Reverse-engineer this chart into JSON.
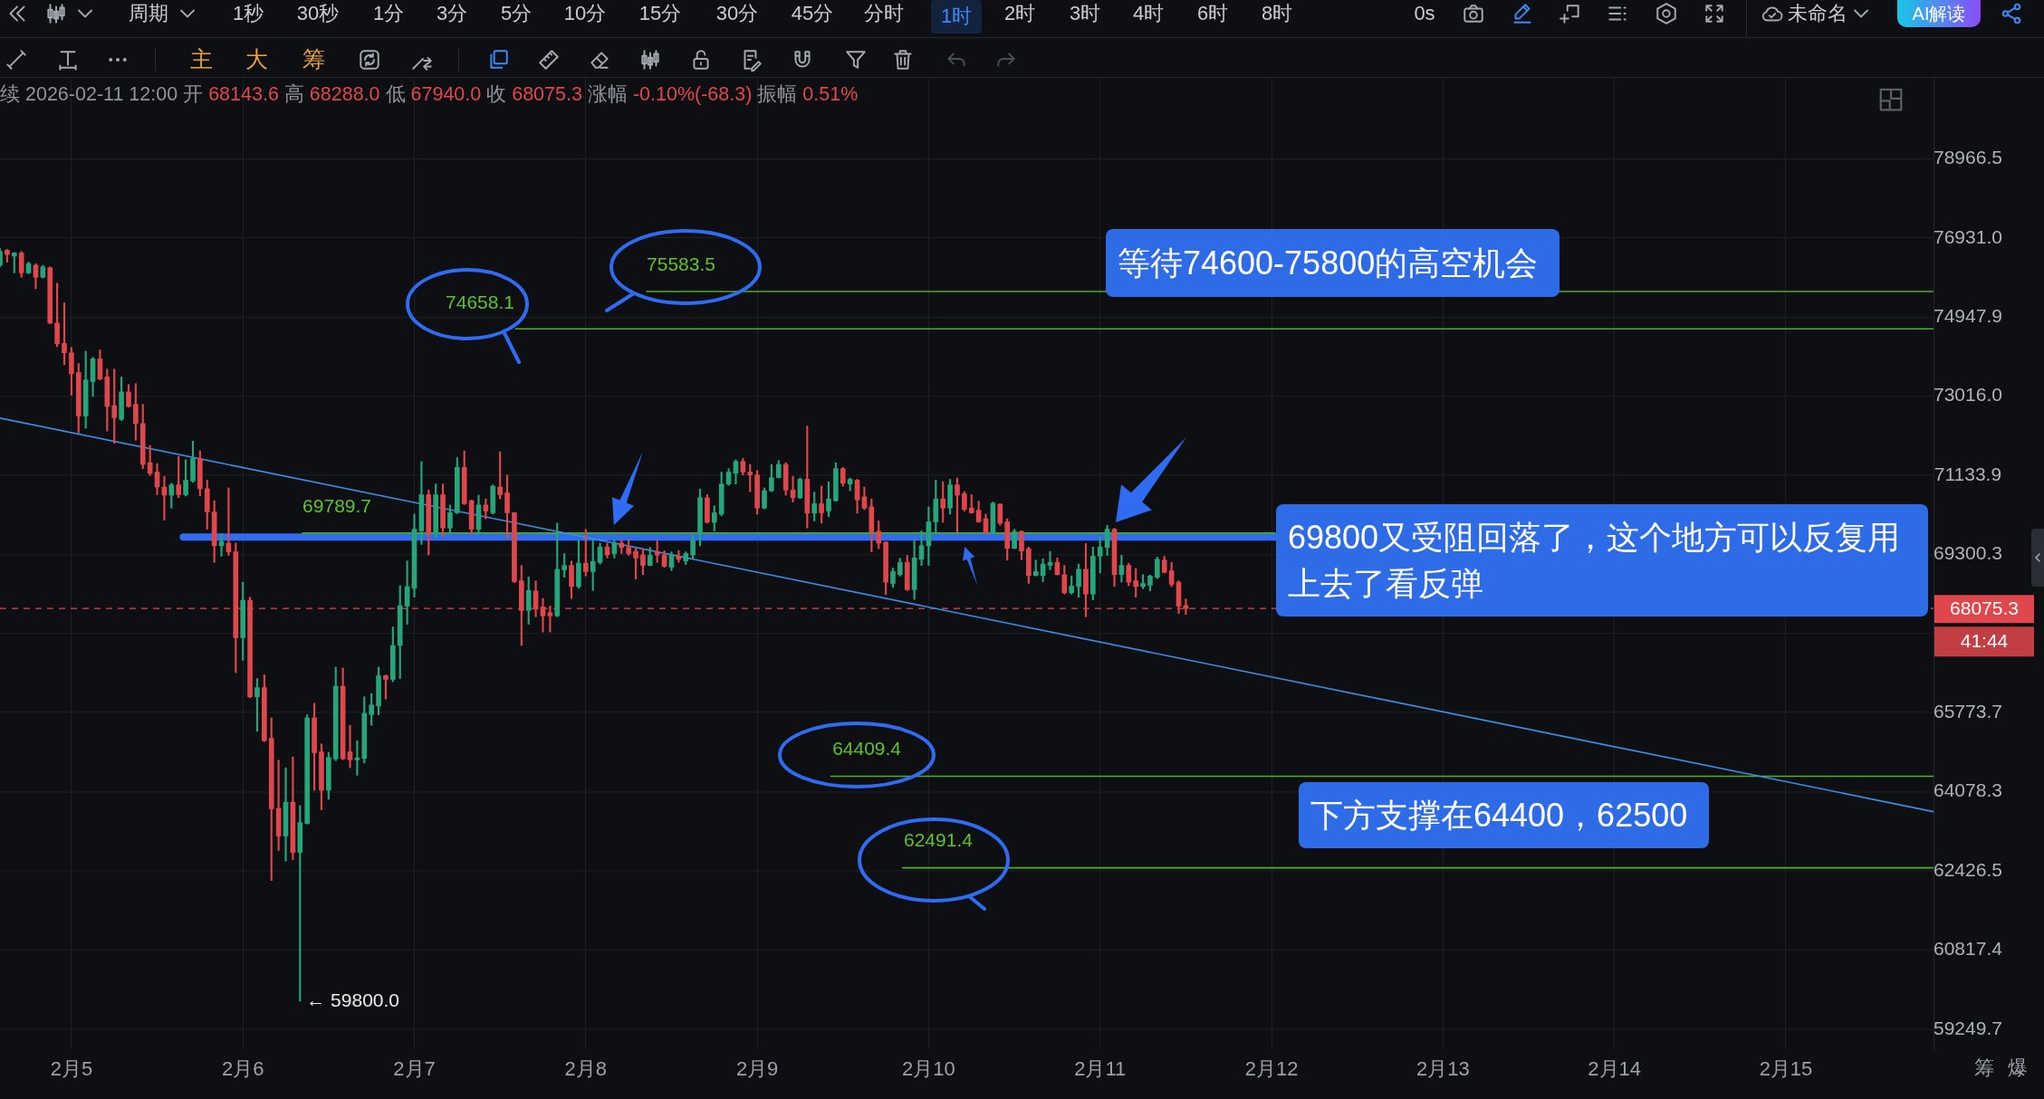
{
  "chart_data": {
    "type": "candlestick",
    "subtitle": "续 2026-02-11 12:00 开 68143.6 高 68288.0 低 67940.0 收 68075.3 涨幅 -0.10%(-68.3) 振幅 0.51%",
    "x": [
      "2026-02-04T14:00",
      "2026-02-04T15:00",
      "2026-02-04T16:00",
      "2026-02-04T17:00",
      "2026-02-04T18:00",
      "2026-02-04T19:00",
      "2026-02-04T20:00",
      "2026-02-04T21:00",
      "2026-02-04T22:00",
      "2026-02-04T23:00",
      "2026-02-05T00:00",
      "2026-02-05T01:00",
      "2026-02-05T02:00",
      "2026-02-05T03:00",
      "2026-02-05T04:00",
      "2026-02-05T05:00",
      "2026-02-05T06:00",
      "2026-02-05T07:00",
      "2026-02-05T08:00",
      "2026-02-05T09:00",
      "2026-02-05T10:00",
      "2026-02-05T11:00",
      "2026-02-05T12:00",
      "2026-02-05T13:00",
      "2026-02-05T14:00",
      "2026-02-05T15:00",
      "2026-02-05T16:00",
      "2026-02-05T17:00",
      "2026-02-05T18:00",
      "2026-02-05T19:00",
      "2026-02-05T20:00",
      "2026-02-05T21:00",
      "2026-02-05T22:00",
      "2026-02-05T23:00",
      "2026-02-06T00:00",
      "2026-02-06T01:00",
      "2026-02-06T02:00",
      "2026-02-06T03:00",
      "2026-02-06T04:00",
      "2026-02-06T05:00",
      "2026-02-06T06:00",
      "2026-02-06T07:00",
      "2026-02-06T08:00",
      "2026-02-06T09:00",
      "2026-02-06T10:00",
      "2026-02-06T11:00",
      "2026-02-06T12:00",
      "2026-02-06T13:00",
      "2026-02-06T14:00",
      "2026-02-06T15:00",
      "2026-02-06T16:00",
      "2026-02-06T17:00",
      "2026-02-06T18:00",
      "2026-02-06T19:00",
      "2026-02-06T20:00",
      "2026-02-06T21:00",
      "2026-02-06T22:00",
      "2026-02-06T23:00",
      "2026-02-07T00:00",
      "2026-02-07T01:00",
      "2026-02-07T02:00",
      "2026-02-07T03:00",
      "2026-02-07T04:00",
      "2026-02-07T05:00",
      "2026-02-07T06:00",
      "2026-02-07T07:00",
      "2026-02-07T08:00",
      "2026-02-07T09:00",
      "2026-02-07T10:00",
      "2026-02-07T11:00",
      "2026-02-07T12:00",
      "2026-02-07T13:00",
      "2026-02-07T14:00",
      "2026-02-07T15:00",
      "2026-02-07T16:00",
      "2026-02-07T17:00",
      "2026-02-07T18:00",
      "2026-02-07T19:00",
      "2026-02-07T20:00",
      "2026-02-07T21:00",
      "2026-02-07T22:00",
      "2026-02-07T23:00",
      "2026-02-08T00:00",
      "2026-02-08T01:00",
      "2026-02-08T02:00",
      "2026-02-08T03:00",
      "2026-02-08T04:00",
      "2026-02-08T05:00",
      "2026-02-08T06:00",
      "2026-02-08T07:00",
      "2026-02-08T08:00",
      "2026-02-08T09:00",
      "2026-02-08T10:00",
      "2026-02-08T11:00",
      "2026-02-08T12:00",
      "2026-02-08T13:00",
      "2026-02-08T14:00",
      "2026-02-08T15:00",
      "2026-02-08T16:00",
      "2026-02-08T17:00",
      "2026-02-08T18:00",
      "2026-02-08T19:00",
      "2026-02-08T20:00",
      "2026-02-08T21:00",
      "2026-02-08T22:00",
      "2026-02-08T23:00",
      "2026-02-09T00:00",
      "2026-02-09T01:00",
      "2026-02-09T02:00",
      "2026-02-09T03:00",
      "2026-02-09T04:00",
      "2026-02-09T05:00",
      "2026-02-09T06:00",
      "2026-02-09T07:00",
      "2026-02-09T08:00",
      "2026-02-09T09:00",
      "2026-02-09T10:00",
      "2026-02-09T11:00",
      "2026-02-09T12:00",
      "2026-02-09T13:00",
      "2026-02-09T14:00",
      "2026-02-09T15:00",
      "2026-02-09T16:00",
      "2026-02-09T17:00",
      "2026-02-09T18:00",
      "2026-02-09T19:00",
      "2026-02-09T20:00",
      "2026-02-09T21:00",
      "2026-02-09T22:00",
      "2026-02-09T23:00",
      "2026-02-10T00:00",
      "2026-02-10T01:00",
      "2026-02-10T02:00",
      "2026-02-10T03:00",
      "2026-02-10T04:00",
      "2026-02-10T05:00",
      "2026-02-10T06:00",
      "2026-02-10T07:00",
      "2026-02-10T08:00",
      "2026-02-10T09:00",
      "2026-02-10T10:00",
      "2026-02-10T11:00",
      "2026-02-10T12:00",
      "2026-02-10T13:00",
      "2026-02-10T14:00",
      "2026-02-10T15:00",
      "2026-02-10T16:00",
      "2026-02-10T17:00",
      "2026-02-10T18:00",
      "2026-02-10T19:00",
      "2026-02-10T20:00",
      "2026-02-10T21:00",
      "2026-02-10T22:00",
      "2026-02-10T23:00",
      "2026-02-11T00:00",
      "2026-02-11T01:00",
      "2026-02-11T02:00",
      "2026-02-11T03:00",
      "2026-02-11T04:00",
      "2026-02-11T05:00",
      "2026-02-11T06:00",
      "2026-02-11T07:00",
      "2026-02-11T08:00",
      "2026-02-11T09:00",
      "2026-02-11T10:00",
      "2026-02-11T11:00",
      "2026-02-11T12:00"
    ],
    "ohlc": [
      [
        76240,
        76660,
        76200,
        76590
      ],
      [
        76620,
        76640,
        76320,
        76510
      ],
      [
        76470,
        76560,
        76050,
        76550
      ],
      [
        76550,
        76590,
        75940,
        76050
      ],
      [
        76050,
        76320,
        76030,
        76280
      ],
      [
        76240,
        76280,
        75650,
        75940
      ],
      [
        75940,
        76240,
        75920,
        76200
      ],
      [
        76180,
        76200,
        74780,
        74800
      ],
      [
        74800,
        75790,
        74220,
        74290
      ],
      [
        74300,
        75300,
        73780,
        74070
      ],
      [
        74070,
        74200,
        73040,
        73560
      ],
      [
        73590,
        73810,
        72140,
        72540
      ],
      [
        72540,
        74110,
        72250,
        73410
      ],
      [
        73370,
        73960,
        73010,
        73920
      ],
      [
        73920,
        74140,
        73410,
        73430
      ],
      [
        73480,
        73670,
        72180,
        72770
      ],
      [
        72790,
        73670,
        71890,
        72500
      ],
      [
        72460,
        73480,
        72430,
        73120
      ],
      [
        73120,
        73300,
        72750,
        72770
      ],
      [
        72820,
        73320,
        71960,
        72360
      ],
      [
        72360,
        72820,
        71290,
        71390
      ],
      [
        71430,
        71840,
        71130,
        71180
      ],
      [
        71210,
        71410,
        70680,
        70860
      ],
      [
        70860,
        71110,
        70090,
        70670
      ],
      [
        70670,
        70950,
        70370,
        70910
      ],
      [
        70910,
        71580,
        70610,
        70680
      ],
      [
        70680,
        71500,
        70650,
        71020
      ],
      [
        71000,
        71940,
        70970,
        71530
      ],
      [
        71530,
        71710,
        70650,
        70820
      ],
      [
        70820,
        71020,
        69880,
        70280
      ],
      [
        70280,
        70540,
        69120,
        69500
      ],
      [
        69500,
        69770,
        69260,
        69600
      ],
      [
        69560,
        70840,
        69280,
        69360
      ],
      [
        69360,
        69560,
        66650,
        67420
      ],
      [
        67420,
        68670,
        66920,
        68260
      ],
      [
        68260,
        68330,
        66100,
        66120
      ],
      [
        66120,
        66520,
        65370,
        66320
      ],
      [
        66320,
        66600,
        65150,
        65170
      ],
      [
        65220,
        65660,
        62230,
        63720
      ],
      [
        63730,
        64750,
        62850,
        63150
      ],
      [
        63150,
        64590,
        62630,
        63860
      ],
      [
        63860,
        64820,
        62660,
        62810
      ],
      [
        62810,
        63790,
        59800,
        63430
      ],
      [
        63410,
        65730,
        63400,
        65660
      ],
      [
        65660,
        65980,
        64110,
        64910
      ],
      [
        64930,
        65100,
        63700,
        64110
      ],
      [
        64110,
        64920,
        63920,
        64810
      ],
      [
        64780,
        66770,
        64740,
        66350
      ],
      [
        66350,
        66750,
        64760,
        64780
      ],
      [
        64930,
        65500,
        64590,
        64760
      ],
      [
        64760,
        65170,
        64430,
        64800
      ],
      [
        64790,
        66120,
        64690,
        65760
      ],
      [
        65730,
        66190,
        65500,
        65940
      ],
      [
        65920,
        66770,
        65730,
        66580
      ],
      [
        66580,
        66600,
        66070,
        66500
      ],
      [
        66500,
        67660,
        66450,
        67250
      ],
      [
        67250,
        68590,
        66520,
        68140
      ],
      [
        68130,
        69150,
        67720,
        68570
      ],
      [
        68530,
        70230,
        68330,
        69880
      ],
      [
        69840,
        71460,
        69530,
        70680
      ],
      [
        70680,
        70790,
        69290,
        69770
      ],
      [
        69770,
        70930,
        69700,
        70680
      ],
      [
        70680,
        70930,
        69700,
        69910
      ],
      [
        69910,
        70440,
        69770,
        70260
      ],
      [
        70260,
        71550,
        70240,
        71320
      ],
      [
        71320,
        71710,
        70450,
        70470
      ],
      [
        70540,
        70560,
        69770,
        69880
      ],
      [
        69880,
        70670,
        69770,
        70440
      ],
      [
        70440,
        70580,
        70120,
        70300
      ],
      [
        70260,
        70910,
        70230,
        70880
      ],
      [
        70860,
        71690,
        70580,
        70680
      ],
      [
        70720,
        71140,
        69670,
        70260
      ],
      [
        70260,
        70270,
        68660,
        68680
      ],
      [
        68700,
        69050,
        67250,
        68030
      ],
      [
        68030,
        68790,
        67720,
        68480
      ],
      [
        68470,
        68700,
        67890,
        68060
      ],
      [
        68110,
        68300,
        67550,
        67910
      ],
      [
        67980,
        68130,
        67550,
        67910
      ],
      [
        67910,
        70020,
        67890,
        68960
      ],
      [
        68950,
        69320,
        68780,
        69050
      ],
      [
        69050,
        69150,
        68300,
        68570
      ],
      [
        68570,
        69630,
        68530,
        69100
      ],
      [
        69100,
        69880,
        68810,
        68910
      ],
      [
        68910,
        69630,
        68480,
        69140
      ],
      [
        69120,
        69560,
        69080,
        69470
      ],
      [
        69470,
        69560,
        69220,
        69290
      ],
      [
        69320,
        69630,
        69220,
        69560
      ],
      [
        69560,
        69630,
        69320,
        69460
      ],
      [
        69460,
        69630,
        69280,
        69320
      ],
      [
        69370,
        69430,
        68740,
        69220
      ],
      [
        69290,
        69430,
        68840,
        69050
      ],
      [
        69050,
        69460,
        69040,
        69280
      ],
      [
        69360,
        69630,
        69120,
        69290
      ],
      [
        69290,
        69390,
        69010,
        69030
      ],
      [
        69010,
        69360,
        68930,
        69290
      ],
      [
        69260,
        69390,
        69120,
        69190
      ],
      [
        69150,
        69360,
        69070,
        69320
      ],
      [
        69290,
        69740,
        69190,
        69630
      ],
      [
        69770,
        70810,
        69500,
        70610
      ],
      [
        70610,
        70680,
        70020,
        70040
      ],
      [
        70040,
        70420,
        69840,
        70260
      ],
      [
        70230,
        71210,
        70190,
        70930
      ],
      [
        70930,
        71290,
        70900,
        71210
      ],
      [
        71180,
        71500,
        70930,
        71460
      ],
      [
        71460,
        71530,
        71140,
        71210
      ],
      [
        71210,
        71390,
        70750,
        71140
      ],
      [
        71140,
        71250,
        70230,
        70370
      ],
      [
        70370,
        70840,
        70350,
        70770
      ],
      [
        70770,
        71390,
        70750,
        71080
      ],
      [
        71080,
        71480,
        71070,
        71390
      ],
      [
        71390,
        71430,
        70670,
        70790
      ],
      [
        70790,
        71110,
        70510,
        70610
      ],
      [
        70610,
        71070,
        70590,
        71040
      ],
      [
        71040,
        72300,
        69910,
        70250
      ],
      [
        70250,
        70740,
        70070,
        70470
      ],
      [
        70470,
        70880,
        70020,
        70260
      ],
      [
        70300,
        70980,
        70170,
        70580
      ],
      [
        70540,
        71430,
        70530,
        71290
      ],
      [
        71290,
        71320,
        70880,
        70950
      ],
      [
        70930,
        71070,
        70770,
        71040
      ],
      [
        71020,
        71040,
        70250,
        70560
      ],
      [
        70630,
        70860,
        70340,
        70370
      ],
      [
        70400,
        70580,
        69360,
        69810
      ],
      [
        69830,
        70070,
        69430,
        69560
      ],
      [
        69580,
        69590,
        68390,
        68670
      ],
      [
        68640,
        68990,
        68550,
        68910
      ],
      [
        68840,
        69210,
        68810,
        69120
      ],
      [
        69120,
        69280,
        68480,
        68500
      ],
      [
        68500,
        69630,
        68280,
        69220
      ],
      [
        69190,
        69840,
        69050,
        69500
      ],
      [
        69500,
        70400,
        69050,
        70050
      ],
      [
        70050,
        71020,
        69810,
        70580
      ],
      [
        70580,
        70980,
        70040,
        70370
      ],
      [
        70370,
        71040,
        70230,
        70910
      ],
      [
        70910,
        71070,
        69810,
        70670
      ],
      [
        70700,
        70750,
        70300,
        70340
      ],
      [
        70370,
        70680,
        70250,
        70260
      ],
      [
        70320,
        70530,
        70040,
        70050
      ],
      [
        70120,
        70230,
        69780,
        69790
      ],
      [
        69790,
        70510,
        69780,
        70480
      ],
      [
        70460,
        70470,
        69970,
        70020
      ],
      [
        70050,
        70120,
        69170,
        69440
      ],
      [
        69440,
        69880,
        69430,
        69830
      ],
      [
        69830,
        69840,
        69180,
        69380
      ],
      [
        69430,
        69470,
        68640,
        68820
      ],
      [
        68820,
        69170,
        68810,
        68910
      ],
      [
        68820,
        69200,
        68680,
        69080
      ],
      [
        69050,
        69370,
        68950,
        69120
      ],
      [
        69120,
        69220,
        68830,
        68840
      ],
      [
        68840,
        69050,
        68400,
        68430
      ],
      [
        68430,
        68810,
        68400,
        68580
      ],
      [
        68570,
        69080,
        68330,
        68960
      ],
      [
        68960,
        69550,
        67890,
        68400
      ],
      [
        68400,
        69470,
        68270,
        69260
      ],
      [
        69260,
        69700,
        68880,
        69470
      ],
      [
        69460,
        69970,
        69280,
        69880
      ],
      [
        69880,
        69900,
        68570,
        68840
      ],
      [
        68840,
        69280,
        68670,
        69050
      ],
      [
        69050,
        69100,
        68590,
        68670
      ],
      [
        68700,
        68980,
        68330,
        68570
      ],
      [
        68570,
        68840,
        68520,
        68640
      ],
      [
        68600,
        68830,
        68470,
        68810
      ],
      [
        68780,
        69240,
        68750,
        69190
      ],
      [
        69170,
        69260,
        68880,
        68890
      ],
      [
        68930,
        69120,
        68570,
        68620
      ],
      [
        68670,
        68700,
        67960,
        68130
      ],
      [
        68143.6,
        68288.0,
        67940.0,
        68075.3
      ]
    ],
    "colors": [
      "#26a47a",
      "#e0474c",
      "#26a47a",
      "#e0474c",
      "#26a47a",
      "#e0474c",
      "#26a47a",
      "#e0474c",
      "#e0474c",
      "#e0474c",
      "#e0474c",
      "#e0474c",
      "#26a47a",
      "#26a47a",
      "#e0474c",
      "#e0474c",
      "#e0474c",
      "#26a47a",
      "#e0474c",
      "#e0474c",
      "#e0474c",
      "#e0474c",
      "#e0474c",
      "#e0474c",
      "#26a47a",
      "#e0474c",
      "#26a47a",
      "#26a47a",
      "#e0474c",
      "#e0474c",
      "#e0474c",
      "#26a47a",
      "#e0474c",
      "#e0474c",
      "#26a47a",
      "#e0474c",
      "#26a47a",
      "#e0474c",
      "#e0474c",
      "#e0474c",
      "#26a47a",
      "#e0474c",
      "#26a47a",
      "#26a47a",
      "#e0474c",
      "#e0474c",
      "#26a47a",
      "#26a47a",
      "#e0474c",
      "#e0474c",
      "#26a47a",
      "#26a47a",
      "#26a47a",
      "#26a47a",
      "#e0474c",
      "#26a47a",
      "#26a47a",
      "#26a47a",
      "#26a47a",
      "#26a47a",
      "#e0474c",
      "#26a47a",
      "#e0474c",
      "#26a47a",
      "#26a47a",
      "#e0474c",
      "#e0474c",
      "#26a47a",
      "#e0474c",
      "#26a47a",
      "#e0474c",
      "#e0474c",
      "#e0474c",
      "#e0474c",
      "#26a47a",
      "#e0474c",
      "#e0474c",
      "#e0474c",
      "#26a47a",
      "#26a47a",
      "#e0474c",
      "#26a47a",
      "#e0474c",
      "#26a47a",
      "#26a47a",
      "#e0474c",
      "#26a47a",
      "#e0474c",
      "#e0474c",
      "#e0474c",
      "#e0474c",
      "#26a47a",
      "#e0474c",
      "#e0474c",
      "#26a47a",
      "#e0474c",
      "#26a47a",
      "#26a47a",
      "#26a47a",
      "#e0474c",
      "#26a47a",
      "#26a47a",
      "#26a47a",
      "#26a47a",
      "#e0474c",
      "#e0474c",
      "#e0474c",
      "#26a47a",
      "#26a47a",
      "#26a47a",
      "#e0474c",
      "#e0474c",
      "#26a47a",
      "#e0474c",
      "#26a47a",
      "#e0474c",
      "#26a47a",
      "#26a47a",
      "#e0474c",
      "#26a47a",
      "#e0474c",
      "#e0474c",
      "#e0474c",
      "#e0474c",
      "#e0474c",
      "#26a47a",
      "#26a47a",
      "#e0474c",
      "#26a47a",
      "#26a47a",
      "#26a47a",
      "#26a47a",
      "#e0474c",
      "#26a47a",
      "#e0474c",
      "#e0474c",
      "#e0474c",
      "#e0474c",
      "#e0474c",
      "#26a47a",
      "#e0474c",
      "#e0474c",
      "#26a47a",
      "#e0474c",
      "#e0474c",
      "#26a47a",
      "#26a47a",
      "#26a47a",
      "#e0474c",
      "#e0474c",
      "#26a47a",
      "#26a47a",
      "#e0474c",
      "#26a47a",
      "#26a47a",
      "#26a47a",
      "#e0474c",
      "#26a47a",
      "#e0474c",
      "#e0474c",
      "#26a47a",
      "#26a47a",
      "#26a47a",
      "#e0474c",
      "#e0474c",
      "#e0474c",
      "#e0474c"
    ],
    "series": [
      {
        "type": "line",
        "color": "#3a8ee6",
        "x": [
          "2026-02-04T14:00",
          "2026-02-15T20:40"
        ],
        "values": [
          72490,
          63660
        ]
      },
      {
        "type": "line",
        "color": "#4caf26",
        "x": [
          "2026-02-08T08:30",
          "2026-02-15T20:40"
        ],
        "values": [
          75583.5,
          75583.5
        ]
      },
      {
        "type": "line",
        "color": "#4caf26",
        "x": [
          "2026-02-07T14:10",
          "2026-02-15T20:40"
        ],
        "values": [
          74658.1,
          74658.1
        ]
      },
      {
        "type": "line",
        "color": "#4caf26",
        "x": [
          "2026-02-06T08:20",
          "2026-02-12T00:30"
        ],
        "values": [
          69789.7,
          69789.7
        ]
      },
      {
        "type": "line",
        "color": "#4caf26",
        "x": [
          "2026-02-09T10:20",
          "2026-02-15T20:40"
        ],
        "values": [
          64409.4,
          64409.4
        ]
      },
      {
        "type": "line",
        "color": "#4caf26",
        "x": [
          "2026-02-09T20:20",
          "2026-02-15T20:40"
        ],
        "values": [
          62491.4,
          62491.4
        ]
      },
      {
        "type": "line",
        "color": "#2f6cf2",
        "x": [
          "2026-02-05T15:40",
          "2026-02-12T00:30"
        ],
        "values": [
          69700,
          69700
        ]
      }
    ],
    "xlim": [
      "2026-02-04T14:00",
      "2026-02-15T20:40"
    ],
    "xticks": [
      {
        "value": "2026-02-05",
        "label": "2月5"
      },
      {
        "value": "2026-02-06",
        "label": "2月6"
      },
      {
        "value": "2026-02-07",
        "label": "2月7"
      },
      {
        "value": "2026-02-08",
        "label": "2月8"
      },
      {
        "value": "2026-02-09",
        "label": "2月9"
      },
      {
        "value": "2026-02-10",
        "label": "2月10"
      },
      {
        "value": "2026-02-11",
        "label": "2月11"
      },
      {
        "value": "2026-02-12",
        "label": "2月12"
      },
      {
        "value": "2026-02-13",
        "label": "2月13"
      },
      {
        "value": "2026-02-14",
        "label": "2月14"
      },
      {
        "value": "2026-02-15",
        "label": "2月15"
      }
    ],
    "ylim": [
      58850,
      81090
    ],
    "yticks": [
      78966.5,
      {
        "value": 76931.0,
        "label": "76931.0"
      },
      74947.9,
      {
        "value": 73016.0,
        "label": "73016.0"
      },
      71133.9,
      69300.3,
      {
        "value": 67513.9,
        "label": null
      },
      65773.7,
      64078.3,
      62426.5,
      60817.4,
      59249.7
    ],
    "log": true,
    "grid": true,
    "ref_lines": [
      {
        "axis": "y",
        "value": 68075.3,
        "label": "68075.3",
        "color": "#e0474c",
        "line_style": "dashed"
      }
    ],
    "annotations": [
      "周期 1秒 30秒 1分 3分 5分 10分 15分 30分 45分 分时 1时 2时 3时 4时 6时 8时",
      "0s",
      "未命名",
      "AI解读",
      "主 大 筹",
      "筹 爆",
      "41:44",
      "等待74600-75800的高空机会",
      "69800又受阻回落了，这个地方可以反复用上去了看反弹",
      "下方支撑在64400，62500",
      {
        "text": "75583.5",
        "x": "2026-02-08T13:20",
        "y": 75583.5
      },
      "74658.1",
      {
        "text": "69789.7",
        "x": "2026-02-06T13:10",
        "y": 69789.7
      },
      {
        "text": "64409.4",
        "x": "2026-02-09T15:20",
        "y": 64409.4
      },
      {
        "text": "62491.4",
        "x": "2026-02-10T01:20",
        "y": 62491.4
      },
      {
        "text": "← 59800.0",
        "x": "2026-02-06T08:00",
        "y": 59800
      }
    ]
  }
}
